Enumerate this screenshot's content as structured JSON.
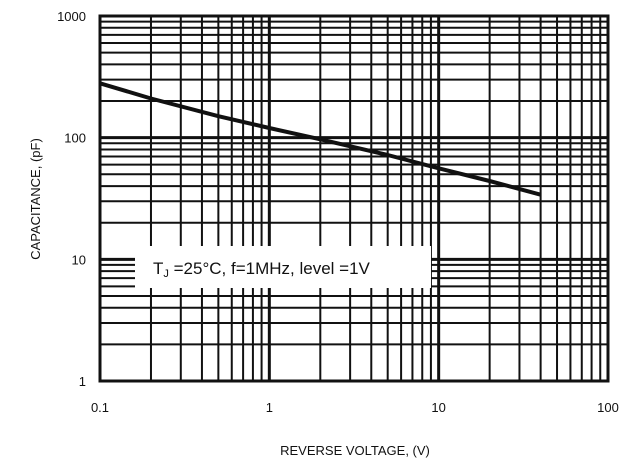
{
  "chart_data": {
    "type": "line",
    "title": "",
    "xlabel": "REVERSE VOLTAGE, (V)",
    "ylabel": "CAPACITANCE, (pF)",
    "x_scale": "log",
    "y_scale": "log",
    "xlim": [
      0.1,
      100
    ],
    "ylim": [
      1,
      1000
    ],
    "grid": true,
    "x_ticks": [
      "0.1",
      "1",
      "10",
      "100"
    ],
    "y_ticks": [
      "1",
      "10",
      "100",
      "1000"
    ],
    "series": [
      {
        "x": [
          0.1,
          0.2,
          0.5,
          1,
          2,
          5,
          10,
          20,
          40
        ],
        "y": [
          280,
          210,
          150,
          120,
          97,
          72,
          56,
          44,
          34
        ]
      }
    ],
    "annotation": {
      "prefix": "T",
      "subscript": "J",
      "rest": " =25°C, f=1MHz, level =1V"
    },
    "colors": {
      "line": "#111111",
      "grid": "#111111",
      "background": "#ffffff"
    }
  }
}
